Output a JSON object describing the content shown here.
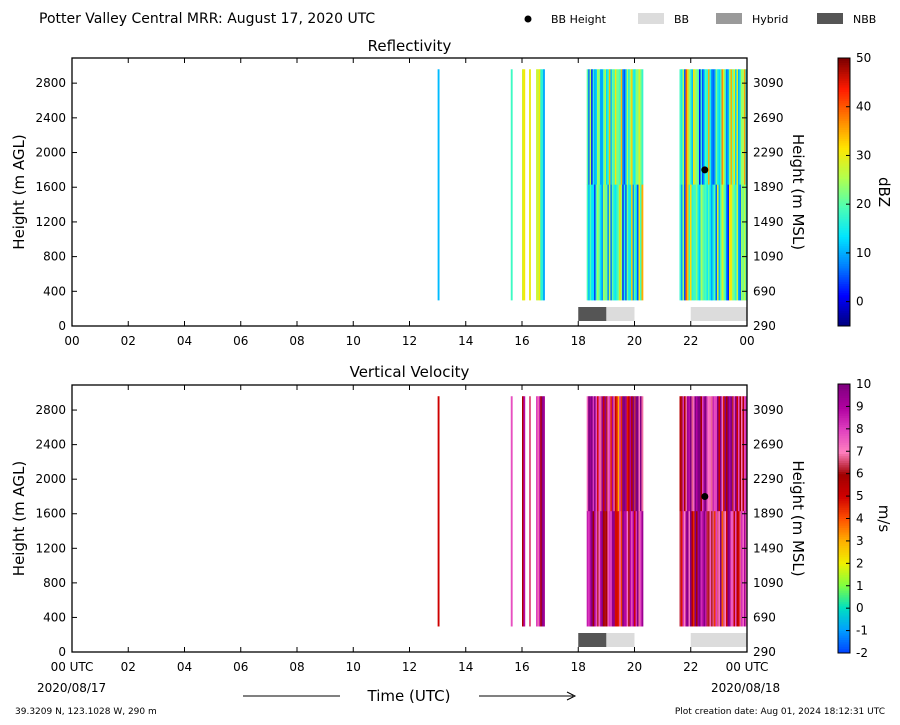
{
  "header": {
    "title": "Potter Valley Central MRR:  August 17, 2020 UTC",
    "legend": [
      {
        "label": "BB Height",
        "kind": "dot",
        "color": "#000000"
      },
      {
        "label": "BB",
        "kind": "box",
        "color": "#dcdcdc"
      },
      {
        "label": "Hybrid",
        "kind": "box",
        "color": "#9a9a9a"
      },
      {
        "label": "NBB",
        "kind": "box",
        "color": "#555555"
      }
    ]
  },
  "footer": {
    "location": "39.3209 N, 123.1028 W, 290 m",
    "creation": "Plot creation date: Aug 01, 2024 18:12:31 UTC",
    "xlabel": "Time (UTC)",
    "start_date": "2020/08/17",
    "end_date": "2020/08/18"
  },
  "chart_data": [
    {
      "type": "heatmap",
      "title": "Reflectivity",
      "ylabel": "Height (m AGL)",
      "ylabel_right": "Height (m MSL)",
      "colorbar_label": "dBZ",
      "xlim": [
        0,
        24
      ],
      "ylim": [
        0,
        3090
      ],
      "x_ticks": [
        "00",
        "02",
        "04",
        "06",
        "08",
        "10",
        "12",
        "14",
        "16",
        "18",
        "20",
        "22",
        "00"
      ],
      "y_ticks": [
        0,
        400,
        800,
        1200,
        1600,
        2000,
        2400,
        2800
      ],
      "y_ticks_right": [
        "290",
        "690",
        "1090",
        "1490",
        "1890",
        "2290",
        "2690",
        "3090"
      ],
      "color_range": [
        -5,
        50
      ],
      "colorbar_ticks": [
        "0",
        "10",
        "20",
        "30",
        "40",
        "50"
      ],
      "colormap": [
        "#00007f",
        "#0000ff",
        "#0080ff",
        "#00e5ff",
        "#4dffb3",
        "#b3ff4d",
        "#ffe500",
        "#ff8000",
        "#ff1a00",
        "#7f0000"
      ],
      "echo_height_range_m": [
        300,
        2960
      ],
      "echo_periods_hours": [
        [
          13.0,
          13.05
        ],
        [
          15.6,
          15.65
        ],
        [
          16.0,
          16.1
        ],
        [
          16.25,
          16.3
        ],
        [
          16.5,
          16.8
        ],
        [
          18.3,
          20.3
        ],
        [
          21.6,
          24.0
        ]
      ],
      "bb_height": {
        "hour": 22.5,
        "height_m": 1800
      },
      "bright_band_bars": [
        {
          "type": "NBB",
          "start_hour": 18.0,
          "end_hour": 19.0
        },
        {
          "type": "BB",
          "start_hour": 19.0,
          "end_hour": 20.0
        },
        {
          "type": "BB",
          "start_hour": 22.0,
          "end_hour": 24.0
        }
      ]
    },
    {
      "type": "heatmap",
      "title": "Vertical Velocity",
      "ylabel": "Height (m AGL)",
      "ylabel_right": "Height (m MSL)",
      "colorbar_label": "m/s",
      "xlim": [
        0,
        24
      ],
      "ylim": [
        0,
        3090
      ],
      "x_ticks": [
        "00 UTC",
        "02",
        "04",
        "06",
        "08",
        "10",
        "12",
        "14",
        "16",
        "18",
        "20",
        "22",
        "00 UTC"
      ],
      "y_ticks": [
        0,
        400,
        800,
        1200,
        1600,
        2000,
        2400,
        2800
      ],
      "y_ticks_right": [
        "290",
        "690",
        "1090",
        "1490",
        "1890",
        "2290",
        "2690",
        "3090"
      ],
      "color_range": [
        -2,
        10
      ],
      "colorbar_ticks": [
        "-2",
        "-1",
        "0",
        "1",
        "2",
        "3",
        "4",
        "5",
        "6",
        "7",
        "8",
        "9",
        "10"
      ],
      "colormap": [
        "#0044ff",
        "#00a0ff",
        "#00e0c0",
        "#80ff40",
        "#f0f000",
        "#ffb000",
        "#ff5000",
        "#d00000",
        "#a00000",
        "#ff80c0",
        "#e040c0",
        "#b000a0",
        "#800080"
      ],
      "echo_height_range_m": [
        300,
        2960
      ],
      "echo_periods_hours": [
        [
          13.0,
          13.05
        ],
        [
          15.6,
          15.65
        ],
        [
          16.0,
          16.1
        ],
        [
          16.25,
          16.3
        ],
        [
          16.5,
          16.8
        ],
        [
          18.3,
          20.3
        ],
        [
          21.6,
          24.0
        ]
      ],
      "bb_height": {
        "hour": 22.5,
        "height_m": 1800
      },
      "bright_band_bars": [
        {
          "type": "NBB",
          "start_hour": 18.0,
          "end_hour": 19.0
        },
        {
          "type": "BB",
          "start_hour": 19.0,
          "end_hour": 20.0
        },
        {
          "type": "BB",
          "start_hour": 22.0,
          "end_hour": 24.0
        }
      ]
    }
  ]
}
